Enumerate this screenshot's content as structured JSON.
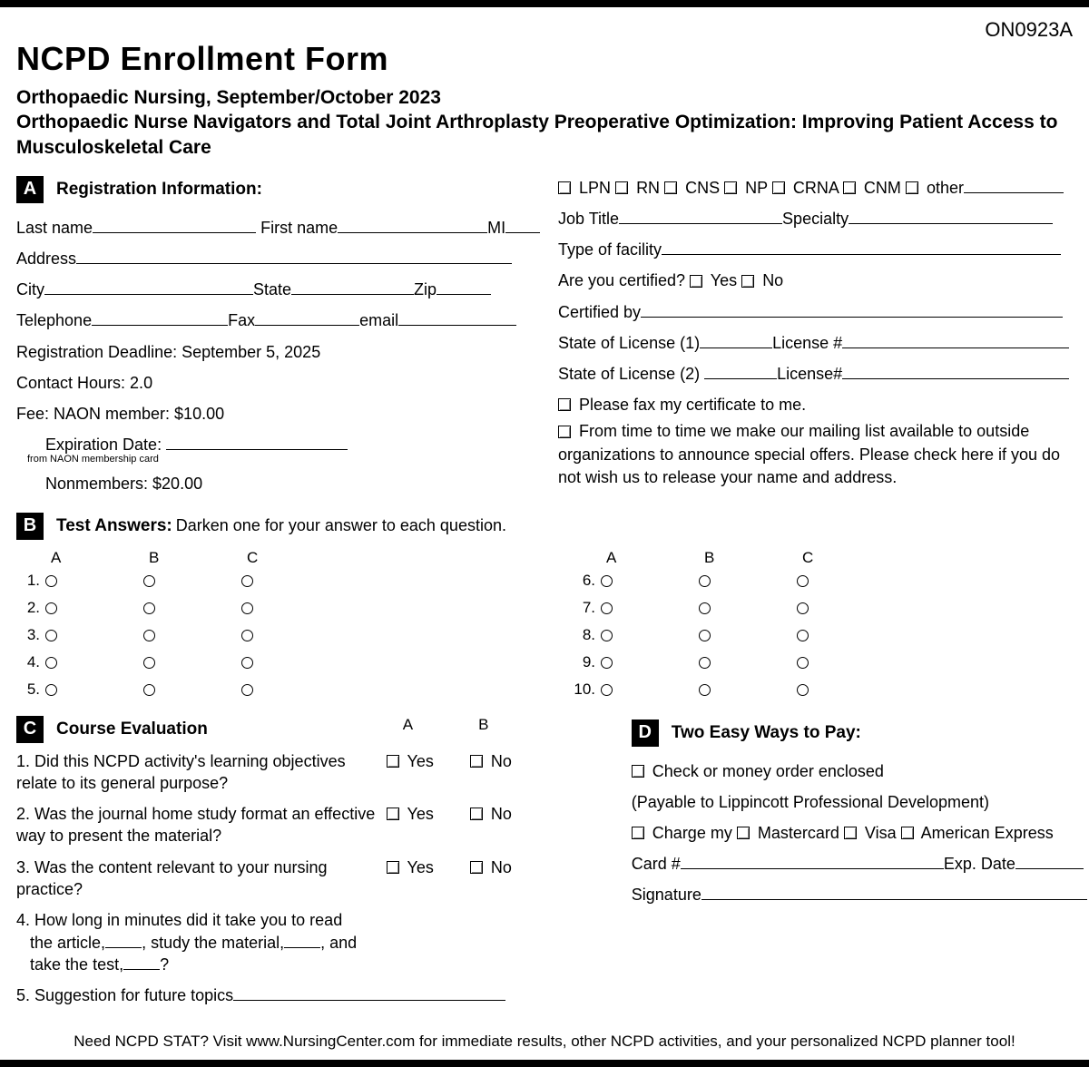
{
  "form_code": "ON0923A",
  "title": "NCPD Enrollment Form",
  "subtitle_line1": "Orthopaedic Nursing, September/October 2023",
  "subtitle_line2": "Orthopaedic Nurse Navigators and Total Joint Arthroplasty Preoperative Optimization: Improving Patient Access to Musculoskeletal Care",
  "sections": {
    "A": {
      "letter": "A",
      "title": "Registration Information:"
    },
    "B": {
      "letter": "B",
      "title": "Test Answers:",
      "sub": "Darken one for your answer to each question."
    },
    "C": {
      "letter": "C",
      "title": "Course Evaluation"
    },
    "D": {
      "letter": "D",
      "title": "Two Easy Ways to Pay:"
    }
  },
  "reg": {
    "last_name": "Last name",
    "first_name": "First name",
    "mi": "MI",
    "address": "Address",
    "city": "City",
    "state": "State",
    "zip": "Zip",
    "telephone": "Telephone",
    "fax": "Fax",
    "email": "email",
    "deadline": "Registration Deadline: September 5, 2025",
    "hours": "Contact Hours: 2.0",
    "fee_member": "Fee: NAON member: $10.00",
    "exp_label": "Expiration Date:",
    "exp_note": "from NAON membership card",
    "fee_nonmember": "Nonmembers: $20.00"
  },
  "cred": {
    "options": [
      "LPN",
      "RN",
      "CNS",
      "NP",
      "CRNA",
      "CNM",
      "other"
    ],
    "job_title": "Job Title",
    "specialty": "Specialty",
    "facility": "Type of facility",
    "certified_q": "Are you certified?",
    "yes": "Yes",
    "no": "No",
    "certified_by": "Certified by",
    "license1_state": "State of License (1)",
    "license1_num": "License #",
    "license2_state": "State of License (2)",
    "license2_num": "License#",
    "fax_cert": "Please fax my certificate to me.",
    "mailing": "From time to time we make our mailing list available to outside organizations to announce special offers. Please check here if you do not wish us to release your name and address."
  },
  "answers": {
    "cols": [
      "A",
      "B",
      "C"
    ],
    "left": [
      "1.",
      "2.",
      "3.",
      "4.",
      "5."
    ],
    "right": [
      "6.",
      "7.",
      "8.",
      "9.",
      "10."
    ]
  },
  "eval": {
    "head": [
      "A",
      "B"
    ],
    "q1": "1. Did this NCPD activity's learning objectives relate to its general purpose?",
    "q2": "2. Was the journal home study format an effective way to present the material?",
    "q3": "3. Was the content relevant to your nursing practice?",
    "q4a": "4. How long in minutes did it take you to read",
    "q4b": "the article,",
    "q4c": ", study the material,",
    "q4d": ", and",
    "q4e": "take the test,",
    "q4f": "?",
    "q5": "5. Suggestion for future topics",
    "yes": "Yes",
    "no": "No"
  },
  "pay": {
    "check": "Check or money order enclosed",
    "payable": "(Payable to Lippincott Professional Development)",
    "charge": "Charge my",
    "cards": [
      "Mastercard",
      "Visa",
      "American Express"
    ],
    "card_num": "Card #",
    "exp": "Exp. Date",
    "sig": "Signature"
  },
  "footer": "Need NCPD STAT? Visit www.NursingCenter.com for immediate results, other NCPD activities, and your personalized NCPD planner tool!"
}
